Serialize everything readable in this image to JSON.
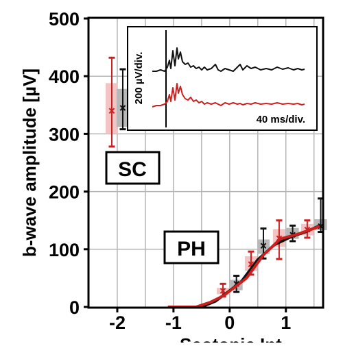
{
  "chart_data": {
    "type": "line",
    "ylabel": "b-wave amplitude [µV]",
    "xlabel": "Scotopic Int.",
    "xlim": [
      -2.5,
      1.65
    ],
    "ylim": [
      0,
      500
    ],
    "x_ticks": [
      -2,
      -1,
      0,
      1
    ],
    "x_tick_labels": [
      "-2",
      "-1",
      "0",
      "1"
    ],
    "y_ticks": [
      0,
      100,
      200,
      300,
      400,
      500
    ],
    "y_tick_labels": [
      "0",
      "100",
      "200",
      "300",
      "400",
      "500"
    ],
    "grid": true,
    "colors": {
      "red": "#cc2020",
      "black": "#111111",
      "red_box": "#f2c4c4",
      "black_box": "#b8b8b8",
      "grid": "#b4b4b4"
    },
    "annotations": {
      "sc": "SC",
      "ph": "PH"
    },
    "sc": {
      "x": -2,
      "series": [
        {
          "color": "red",
          "median": 340,
          "q1": 300,
          "q3": 388,
          "min": 278,
          "max": 432
        },
        {
          "color": "black",
          "median": 345,
          "q1": 312,
          "q3": 378,
          "min": 308,
          "max": 412
        }
      ]
    },
    "ph": {
      "series": [
        {
          "color": "black",
          "curve": [
            [
              -0.85,
              0
            ],
            [
              -0.6,
              0
            ],
            [
              -0.45,
              2
            ],
            [
              -0.25,
              10
            ],
            [
              0.2,
              43
            ],
            [
              0.5,
              82
            ],
            [
              0.8,
              108
            ],
            [
              1.1,
              122
            ],
            [
              1.35,
              130
            ],
            [
              1.6,
              141
            ]
          ],
          "boxes": [
            {
              "x": 0.12,
              "median": 40,
              "q1": 29,
              "q3": 47,
              "min": 26,
              "max": 54
            },
            {
              "x": 0.6,
              "median": 106,
              "q1": 92,
              "q3": 117,
              "min": 84,
              "max": 136
            },
            {
              "x": 1.12,
              "median": 125,
              "q1": 118,
              "q3": 137,
              "min": 114,
              "max": 141
            },
            {
              "x": 1.62,
              "median": 140,
              "q1": 133,
              "q3": 152,
              "min": 130,
              "max": 188
            }
          ]
        },
        {
          "color": "red",
          "curve": [
            [
              -1.1,
              0
            ],
            [
              -0.6,
              0
            ],
            [
              -0.35,
              8
            ],
            [
              -0.1,
              20
            ],
            [
              0.3,
              50
            ],
            [
              0.6,
              90
            ],
            [
              0.9,
              118
            ],
            [
              1.2,
              126
            ],
            [
              1.5,
              136
            ],
            [
              1.6,
              140
            ]
          ],
          "boxes": [
            {
              "x": -0.12,
              "median": 28,
              "q1": 22,
              "q3": 33,
              "min": 18,
              "max": 40
            },
            {
              "x": 0.38,
              "median": 74,
              "q1": 62,
              "q3": 88,
              "min": 56,
              "max": 96
            },
            {
              "x": 0.88,
              "median": 119,
              "q1": 104,
              "q3": 135,
              "min": 83,
              "max": 150
            },
            {
              "x": 1.38,
              "median": 134,
              "q1": 124,
              "q3": 144,
              "min": 120,
              "max": 150
            }
          ]
        }
      ]
    },
    "inset": {
      "ylabel": "200 µV/div.",
      "xlabel": "40 ms/div.",
      "traces": [
        {
          "color": "black",
          "points": [
            [
              0,
              0
            ],
            [
              6,
              0
            ],
            [
              12,
              -2
            ],
            [
              18,
              0
            ],
            [
              22,
              -6
            ],
            [
              25,
              -16
            ],
            [
              27,
              -4
            ],
            [
              30,
              -30
            ],
            [
              33,
              -8
            ],
            [
              36,
              -34
            ],
            [
              38,
              -18
            ],
            [
              41,
              -28
            ],
            [
              44,
              -14
            ],
            [
              48,
              -10
            ],
            [
              52,
              -12
            ],
            [
              56,
              -6
            ],
            [
              60,
              -8
            ],
            [
              64,
              -4
            ],
            [
              68,
              -6
            ],
            [
              72,
              -2
            ],
            [
              76,
              -6
            ],
            [
              80,
              -2
            ],
            [
              86,
              -4
            ],
            [
              92,
              -10
            ],
            [
              96,
              -2
            ],
            [
              100,
              0
            ],
            [
              106,
              -4
            ],
            [
              112,
              -2
            ],
            [
              118,
              0
            ],
            [
              124,
              -6
            ],
            [
              128,
              -10
            ],
            [
              132,
              -2
            ],
            [
              138,
              -8
            ],
            [
              144,
              -4
            ],
            [
              150,
              -6
            ],
            [
              158,
              -2
            ],
            [
              166,
              -4
            ],
            [
              174,
              -2
            ],
            [
              182,
              -6
            ],
            [
              190,
              -3
            ],
            [
              198,
              -5
            ],
            [
              206,
              -2
            ],
            [
              212,
              -4
            ],
            [
              218,
              -2
            ],
            [
              222,
              -3
            ]
          ]
        },
        {
          "color": "red",
          "points": [
            [
              0,
              0
            ],
            [
              6,
              -2
            ],
            [
              12,
              -2
            ],
            [
              18,
              -4
            ],
            [
              22,
              -8
            ],
            [
              25,
              -18
            ],
            [
              27,
              -8
            ],
            [
              30,
              -28
            ],
            [
              33,
              -10
            ],
            [
              36,
              -34
            ],
            [
              38,
              -20
            ],
            [
              41,
              -30
            ],
            [
              44,
              -18
            ],
            [
              48,
              -12
            ],
            [
              52,
              -10
            ],
            [
              56,
              -14
            ],
            [
              60,
              -8
            ],
            [
              64,
              -10
            ],
            [
              68,
              -6
            ],
            [
              72,
              -8
            ],
            [
              76,
              -4
            ],
            [
              80,
              -6
            ],
            [
              86,
              -4
            ],
            [
              92,
              -6
            ],
            [
              96,
              -4
            ],
            [
              100,
              -2
            ],
            [
              106,
              -6
            ],
            [
              112,
              -4
            ],
            [
              118,
              -6
            ],
            [
              124,
              -4
            ],
            [
              128,
              -5
            ],
            [
              132,
              -3
            ],
            [
              138,
              -5
            ],
            [
              144,
              -4
            ],
            [
              150,
              -6
            ],
            [
              158,
              -4
            ],
            [
              166,
              -5
            ],
            [
              174,
              -4
            ],
            [
              182,
              -6
            ],
            [
              190,
              -4
            ],
            [
              198,
              -5
            ],
            [
              206,
              -4
            ],
            [
              212,
              -5
            ],
            [
              218,
              -3
            ],
            [
              222,
              -4
            ]
          ]
        }
      ]
    }
  }
}
